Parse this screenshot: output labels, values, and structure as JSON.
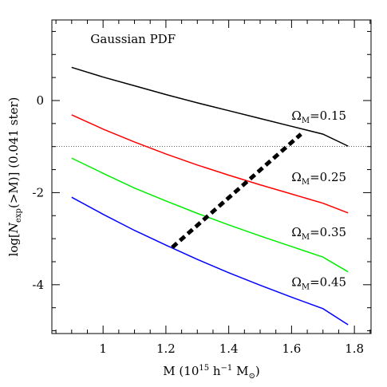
{
  "chart_data": {
    "type": "line",
    "title": "Gaussian PDF",
    "xlabel": [
      {
        "text": "M  (10"
      },
      {
        "text": "15",
        "sup": true
      },
      {
        "text": " h"
      },
      {
        "text": "−1",
        "sup": true
      },
      {
        "text": " M"
      },
      {
        "text": "⊙",
        "sub": true
      },
      {
        "text": ")"
      }
    ],
    "ylabel": [
      {
        "text": "log["
      },
      {
        "text": "N",
        "italic": true
      },
      {
        "text": "exp",
        "sub": true
      },
      {
        "text": "(>M)]  (0.041 ster)"
      }
    ],
    "xlim": [
      0.837,
      1.853
    ],
    "ylim": [
      -5.06,
      1.75
    ],
    "xticks": [
      1,
      1.2,
      1.4,
      1.6,
      1.8
    ],
    "yticks": [
      -4,
      -2,
      0
    ],
    "xminor": [
      0.85,
      0.9,
      0.95,
      1.05,
      1.1,
      1.15,
      1.25,
      1.3,
      1.35,
      1.45,
      1.5,
      1.55,
      1.65,
      1.7,
      1.75,
      1.85
    ],
    "yminor": [
      -5,
      -4.5,
      -3.5,
      -3,
      -2.5,
      -1.5,
      -1,
      -0.5,
      0.5,
      1,
      1.5
    ],
    "x": [
      0.9,
      1.0,
      1.1,
      1.2,
      1.3,
      1.4,
      1.5,
      1.6,
      1.7,
      1.78
    ],
    "series": [
      {
        "label": {
          "main": "Ω",
          "sub": "M",
          "rest": "=0.15"
        },
        "label_at": [
          1.6,
          -0.42
        ],
        "color": "#000000",
        "values": [
          0.72,
          0.51,
          0.32,
          0.13,
          -0.05,
          -0.22,
          -0.39,
          -0.56,
          -0.73,
          -0.99
        ]
      },
      {
        "label": {
          "main": "Ω",
          "sub": "M",
          "rest": "=0.25"
        },
        "label_at": [
          1.6,
          -1.75
        ],
        "color": "#ff0000",
        "values": [
          -0.31,
          -0.62,
          -0.9,
          -1.16,
          -1.4,
          -1.62,
          -1.83,
          -2.03,
          -2.23,
          -2.44
        ]
      },
      {
        "label": {
          "main": "Ω",
          "sub": "M",
          "rest": "=0.35"
        },
        "label_at": [
          1.6,
          -2.95
        ],
        "color": "#00ee00",
        "values": [
          -1.25,
          -1.58,
          -1.9,
          -2.18,
          -2.45,
          -2.7,
          -2.94,
          -3.17,
          -3.4,
          -3.72
        ]
      },
      {
        "label": {
          "main": "Ω",
          "sub": "M",
          "rest": "=0.45"
        },
        "label_at": [
          1.6,
          -4.03
        ],
        "color": "#0000ff",
        "values": [
          -2.1,
          -2.47,
          -2.82,
          -3.14,
          -3.45,
          -3.74,
          -4.01,
          -4.27,
          -4.52,
          -4.87
        ]
      }
    ],
    "reference_line": -1,
    "dashed_segment": {
      "x": [
        1.22,
        1.63
      ],
      "y": [
        -3.19,
        -0.73
      ]
    },
    "title_at": [
      0.96,
      1.25
    ]
  }
}
